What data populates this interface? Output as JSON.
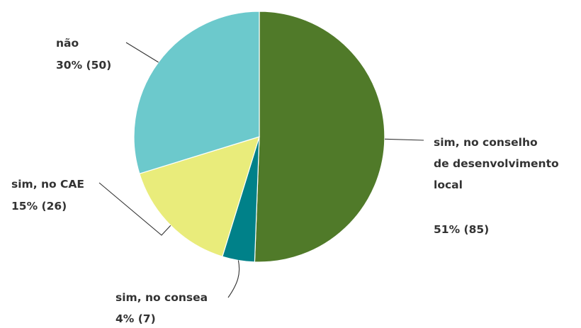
{
  "chart_data": {
    "type": "pie",
    "title": "",
    "categories": [
      "sim, no conselho de desenvolvimento local",
      "sim, no consea",
      "sim, no CAE",
      "não"
    ],
    "values": [
      85,
      7,
      26,
      50
    ],
    "percent_labels": [
      "51%",
      "4%",
      "15%",
      "30%"
    ],
    "slices": [
      {
        "label_lines": [
          "sim, no conselho",
          "de desenvolvimento",
          "local"
        ],
        "value": 85,
        "value_text": "51% (85)",
        "color": "#507a29"
      },
      {
        "label_lines": [
          "sim, no consea"
        ],
        "value": 7,
        "value_text": "4% (7)",
        "color": "#008189"
      },
      {
        "label_lines": [
          "sim, no CAE"
        ],
        "value": 26,
        "value_text": "15% (26)",
        "color": "#e9ec7b"
      },
      {
        "label_lines": [
          "não"
        ],
        "value": 50,
        "value_text": "30% (50)",
        "color": "#6cc9cc"
      }
    ],
    "start_angle": "12 o'clock",
    "direction": "clockwise",
    "legend": "none"
  }
}
